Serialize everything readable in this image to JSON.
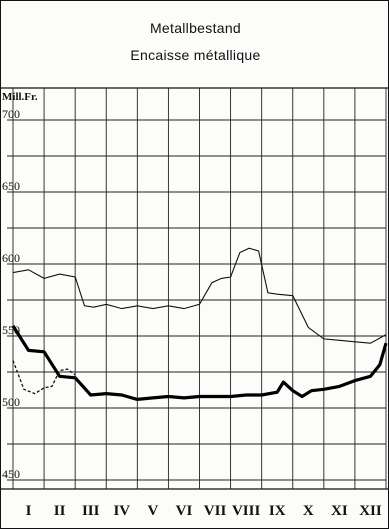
{
  "chart_data": {
    "type": "line",
    "title": "Metallbestand",
    "subtitle": "Encaisse métallique",
    "y_unit_label": "Mill.Fr.",
    "ylim": [
      440,
      710
    ],
    "y_ticks": [
      700,
      650,
      600,
      550,
      500,
      450
    ],
    "x_ticks": [
      "I",
      "II",
      "III",
      "IV",
      "V",
      "VI",
      "VII",
      "VIII",
      "IX",
      "X",
      "XI",
      "XII"
    ],
    "xlim": [
      0,
      12
    ],
    "grid": true,
    "series": [
      {
        "style": "thin",
        "x": [
          0.0,
          0.5,
          1.0,
          1.5,
          2.0,
          2.3,
          2.6,
          3.0,
          3.5,
          4.0,
          4.5,
          5.0,
          5.5,
          6.0,
          6.4,
          6.7,
          7.0,
          7.3,
          7.6,
          7.9,
          8.2,
          8.5,
          9.0,
          9.5,
          10.0,
          10.5,
          11.0,
          11.5,
          12.0
        ],
        "y": [
          594,
          596,
          590,
          593,
          591,
          571,
          570,
          572,
          569,
          571,
          569,
          571,
          569,
          572,
          587,
          590,
          591,
          608,
          611,
          609,
          580,
          579,
          578,
          556,
          548,
          547,
          546,
          545,
          551
        ]
      },
      {
        "style": "thick",
        "x": [
          0.0,
          0.5,
          1.0,
          1.5,
          2.0,
          2.5,
          3.0,
          3.5,
          4.0,
          4.5,
          5.0,
          5.5,
          6.0,
          6.5,
          7.0,
          7.5,
          8.0,
          8.5,
          8.7,
          9.0,
          9.3,
          9.6,
          10.0,
          10.5,
          11.0,
          11.5,
          11.8,
          12.0
        ],
        "y": [
          557,
          540,
          539,
          522,
          521,
          509,
          510,
          509,
          506,
          507,
          508,
          507,
          508,
          508,
          508,
          509,
          509,
          511,
          518,
          512,
          508,
          512,
          513,
          515,
          519,
          522,
          530,
          545
        ]
      },
      {
        "style": "dashed",
        "x": [
          0.0,
          0.35,
          0.7,
          1.0,
          1.25,
          1.5,
          1.75,
          2.0
        ],
        "y": [
          533,
          513,
          510,
          514,
          515,
          526,
          527,
          523
        ]
      }
    ]
  }
}
